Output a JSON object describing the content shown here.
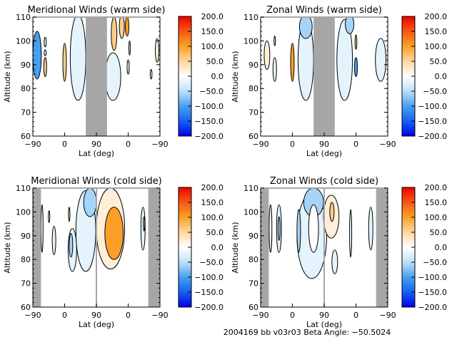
{
  "footer": {
    "text": "2004169 bb v03r03   Beta Angle: -50.5024"
  },
  "chart_data": [
    {
      "type": "heatmap",
      "title": "Meridional Winds (warm side)",
      "xlabel": "Lat (deg)",
      "ylabel": "Altitude (km)",
      "xticks": [
        "-90",
        "0",
        "90",
        "0",
        "-90"
      ],
      "yticks": [
        "60",
        "70",
        "80",
        "90",
        "100",
        "110"
      ],
      "ylim": [
        60,
        110
      ],
      "colorbar": {
        "min": -200,
        "max": 200,
        "ticks": [
          "200.0",
          "150.0",
          "100.0",
          "50.0",
          "0.0",
          "-50.0",
          "-100.0",
          "-150.0",
          "-200.0"
        ]
      },
      "no_data_regions": [
        [
          60,
          120
        ]
      ],
      "features": [
        {
          "x": -78,
          "y": 94,
          "rx": 12,
          "ry": 10,
          "value": -110
        },
        {
          "x": -55,
          "y": 99.5,
          "rx": 3,
          "ry": 2,
          "value": -30
        },
        {
          "x": -55,
          "y": 95,
          "rx": 3,
          "ry": 1.2,
          "value": -30
        },
        {
          "x": -55,
          "y": 89,
          "rx": 4,
          "ry": 4,
          "value": 60
        },
        {
          "x": 0,
          "y": 91,
          "rx": 5,
          "ry": 8,
          "value": 60
        },
        {
          "x": 38,
          "y": 93,
          "rx": 22,
          "ry": 18,
          "value": -30
        },
        {
          "x": 137,
          "y": 85,
          "rx": 22,
          "ry": 10,
          "value": -30
        },
        {
          "x": 140,
          "y": 103,
          "rx": 8,
          "ry": 7,
          "value": 60
        },
        {
          "x": 162,
          "y": 106,
          "rx": 7,
          "ry": 5,
          "value": 50
        },
        {
          "x": 177,
          "y": 106,
          "rx": 5,
          "ry": 4,
          "value": 90
        },
        {
          "x": 180,
          "y": 89,
          "rx": 3,
          "ry": 3,
          "value": 30
        },
        {
          "x": 184,
          "y": 97,
          "rx": 2,
          "ry": 3,
          "value": -20
        },
        {
          "x": 245,
          "y": 86,
          "rx": 2.5,
          "ry": 2,
          "value": -20
        },
        {
          "x": 262,
          "y": 96,
          "rx": 5,
          "ry": 5,
          "value": 30
        }
      ]
    },
    {
      "type": "heatmap",
      "title": "Zonal Winds (warm side)",
      "xlabel": "Lat (deg)",
      "ylabel": "Altitude (km)",
      "xticks": [
        "-90",
        "0",
        "90",
        "0",
        "-90"
      ],
      "yticks": [
        "60",
        "70",
        "80",
        "90",
        "100",
        "110"
      ],
      "ylim": [
        60,
        110
      ],
      "colorbar": {
        "min": -200,
        "max": 200,
        "ticks": [
          "200.0",
          "150.0",
          "100.0",
          "50.0",
          "0.0",
          "-50.0",
          "-100.0",
          "-150.0",
          "-200.0"
        ]
      },
      "no_data_regions": [
        [
          60,
          120
        ]
      ],
      "features": [
        {
          "x": -72,
          "y": 94,
          "rx": 8,
          "ry": 6,
          "value": 40
        },
        {
          "x": -50,
          "y": 100,
          "rx": 2,
          "ry": 2,
          "value": -20
        },
        {
          "x": -50,
          "y": 88,
          "rx": 5,
          "ry": 5,
          "value": -30
        },
        {
          "x": 0,
          "y": 91,
          "rx": 5,
          "ry": 8,
          "value": 90
        },
        {
          "x": 38,
          "y": 92,
          "rx": 22,
          "ry": 17,
          "value": -30
        },
        {
          "x": 38,
          "y": 106,
          "rx": 18,
          "ry": 5,
          "value": -80
        },
        {
          "x": 148,
          "y": 92,
          "rx": 22,
          "ry": 17,
          "value": -30
        },
        {
          "x": 162,
          "y": 107,
          "rx": 12,
          "ry": 4,
          "value": -70
        },
        {
          "x": 180,
          "y": 99.5,
          "rx": 2.5,
          "ry": 3,
          "value": 70
        },
        {
          "x": 180,
          "y": 89,
          "rx": 4,
          "ry": 4,
          "value": -90
        },
        {
          "x": 250,
          "y": 92,
          "rx": 15,
          "ry": 9,
          "value": -30
        }
      ]
    },
    {
      "type": "heatmap",
      "title": "Meridional Winds (cold side)",
      "xlabel": "Lat (deg)",
      "ylabel": "Altitude (km)",
      "xticks": [
        "-90",
        "0",
        "90",
        "0",
        "-90"
      ],
      "yticks": [
        "60",
        "70",
        "80",
        "90",
        "100",
        "110"
      ],
      "ylim": [
        60,
        110
      ],
      "colorbar": {
        "min": -200,
        "max": 200,
        "ticks": [
          "200.0",
          "150.0",
          "100.0",
          "50.0",
          "0.0",
          "-50.0",
          "-100.0",
          "-150.0",
          "-200.0"
        ]
      },
      "no_data_regions": [
        [
          -90,
          -67
        ],
        [
          237,
          270
        ]
      ],
      "divider_x": 90,
      "features": [
        {
          "x": -64,
          "y": 93,
          "rx": 3,
          "ry": 10,
          "value": -30
        },
        {
          "x": -44,
          "y": 98,
          "rx": 2,
          "ry": 2.5,
          "value": -30
        },
        {
          "x": -30,
          "y": 88,
          "rx": 5,
          "ry": 6,
          "value": -30
        },
        {
          "x": 22,
          "y": 84,
          "rx": 12,
          "ry": 9,
          "value": -30
        },
        {
          "x": 60,
          "y": 92,
          "rx": 28,
          "ry": 17,
          "value": -30
        },
        {
          "x": 72,
          "y": 104,
          "rx": 18,
          "ry": 6,
          "value": -70
        },
        {
          "x": 18,
          "y": 86,
          "rx": 5,
          "ry": 5,
          "value": -70
        },
        {
          "x": 13,
          "y": 99,
          "rx": 2,
          "ry": 3,
          "value": 30
        },
        {
          "x": 130,
          "y": 93,
          "rx": 40,
          "ry": 17,
          "value": 40
        },
        {
          "x": 140,
          "y": 91,
          "rx": 26,
          "ry": 11,
          "value": 100
        },
        {
          "x": 222,
          "y": 93,
          "rx": 6,
          "ry": 9,
          "value": -30
        },
        {
          "x": 225,
          "y": 95,
          "rx": 2,
          "ry": 3,
          "value": -70
        }
      ]
    },
    {
      "type": "heatmap",
      "title": "Zonal Winds (cold side)",
      "xlabel": "Lat (deg)",
      "ylabel": "Altitude (km)",
      "xticks": [
        "-90",
        "0",
        "90",
        "0",
        "-90"
      ],
      "yticks": [
        "60",
        "70",
        "80",
        "90",
        "100",
        "110"
      ],
      "ylim": [
        60,
        110
      ],
      "colorbar": {
        "min": -200,
        "max": 200,
        "ticks": [
          "200.0",
          "150.0",
          "100.0",
          "50.0",
          "0.0",
          "-50.0",
          "-100.0",
          "-150.0",
          "-200.0"
        ]
      },
      "no_data_regions": [
        [
          -90,
          -67
        ],
        [
          237,
          270
        ]
      ],
      "divider_x": 90,
      "features": [
        {
          "x": -62,
          "y": 93,
          "rx": 4,
          "ry": 10,
          "value": -40
        },
        {
          "x": -38,
          "y": 93,
          "rx": 7,
          "ry": 10,
          "value": -40
        },
        {
          "x": -38,
          "y": 93,
          "rx": 3,
          "ry": 5,
          "value": -70
        },
        {
          "x": 55,
          "y": 90,
          "rx": 42,
          "ry": 18,
          "value": -30
        },
        {
          "x": 18,
          "y": 92,
          "rx": 5,
          "ry": 9,
          "value": -80
        },
        {
          "x": 60,
          "y": 104,
          "rx": 28,
          "ry": 6,
          "value": -80
        },
        {
          "x": 60,
          "y": 93,
          "rx": 14,
          "ry": 10,
          "value": 0
        },
        {
          "x": 110,
          "y": 98,
          "rx": 22,
          "ry": 9,
          "value": 30
        },
        {
          "x": 112,
          "y": 100,
          "rx": 6,
          "ry": 4,
          "value": 70
        },
        {
          "x": 120,
          "y": 79,
          "rx": 8,
          "ry": 5,
          "value": -30
        },
        {
          "x": 165,
          "y": 91,
          "rx": 3,
          "ry": 10,
          "value": -30
        },
        {
          "x": 222,
          "y": 93,
          "rx": 6,
          "ry": 9,
          "value": -40
        }
      ]
    }
  ]
}
